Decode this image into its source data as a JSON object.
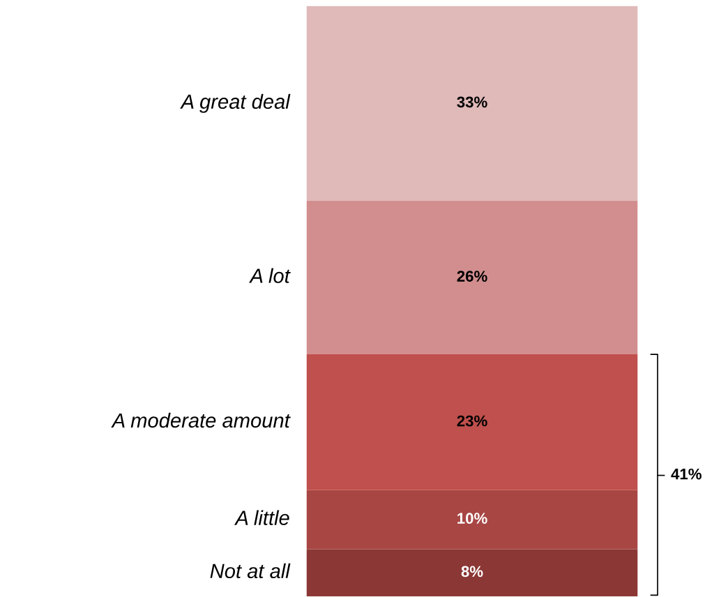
{
  "chart_data": {
    "type": "bar",
    "stacked": true,
    "relative": false,
    "categories": [
      null
    ],
    "series": [
      {
        "name": "Not at all",
        "color": "#8b3735",
        "values": [
          8
        ],
        "value_labels": [
          "8%"
        ]
      },
      {
        "name": "A little",
        "color": "#a84644",
        "values": [
          10
        ],
        "value_labels": [
          "10%"
        ]
      },
      {
        "name": "A moderate amount",
        "color": "#c0504d",
        "values": [
          23
        ],
        "value_labels": [
          "23%"
        ]
      },
      {
        "name": "A lot",
        "color": "#d28e8e",
        "values": [
          26
        ],
        "value_labels": [
          "26%"
        ]
      },
      {
        "name": "A great deal",
        "color": "#e0b9b9",
        "values": [
          33
        ],
        "value_labels": [
          "33%"
        ]
      }
    ],
    "annotations": [
      "41%"
    ],
    "legend": false,
    "tick_labels": false
  }
}
